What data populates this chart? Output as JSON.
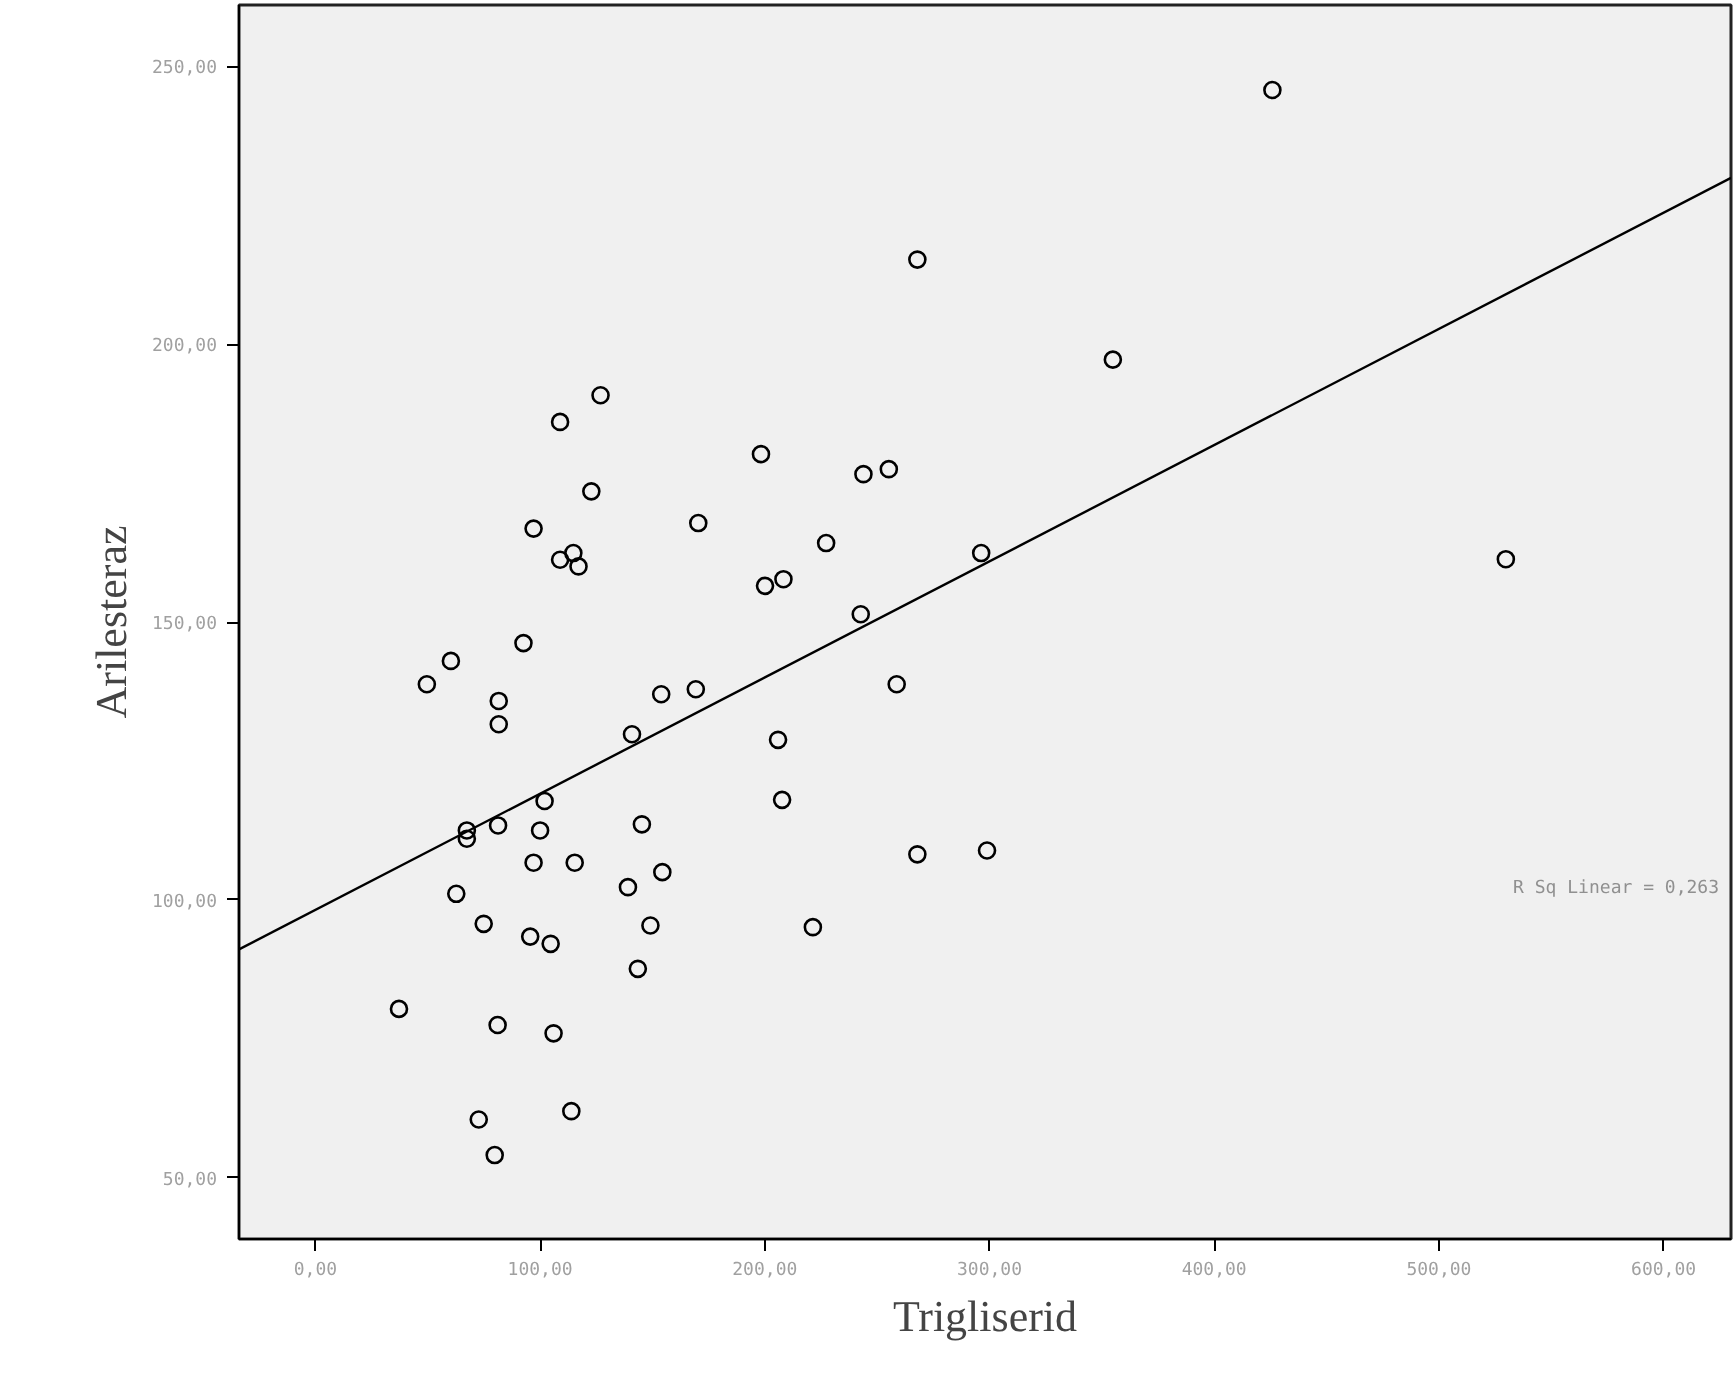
{
  "chart_data": {
    "type": "scatter",
    "xlabel": "Trigliserid",
    "ylabel": "Arilesteraz",
    "grid": false,
    "xlim": [
      -34,
      630
    ],
    "ylim": [
      39,
      261
    ],
    "xticks": [
      {
        "value": 0,
        "label": "0,00"
      },
      {
        "value": 100,
        "label": "100,00"
      },
      {
        "value": 200,
        "label": "200,00"
      },
      {
        "value": 300,
        "label": "300,00"
      },
      {
        "value": 400,
        "label": "400,00"
      },
      {
        "value": 500,
        "label": "500,00"
      },
      {
        "value": 600,
        "label": "600,00"
      }
    ],
    "yticks": [
      {
        "value": 50,
        "label": "50,00"
      },
      {
        "value": 100,
        "label": "100,00"
      },
      {
        "value": 150,
        "label": "150,00"
      },
      {
        "value": 200,
        "label": "200,00"
      },
      {
        "value": 250,
        "label": "250,00"
      }
    ],
    "annotations": [
      "R Sq Linear = 0,263"
    ],
    "series": [
      {
        "marker": "circle",
        "color": "#000000",
        "x": [
          126.9,
          108.9,
          198.3,
          243.9,
          255.2,
          122.8,
          170.4,
          97.1,
          227.3,
          108.9,
          114.8,
          117.1,
          200.1,
          208.3,
          242.7,
          92.6,
          60.3,
          49.6,
          81.6,
          81.6,
          153.9,
          169.3,
          140.9,
          205.9,
          207.7,
          258.7,
          102.0,
          81.3,
          67.4,
          67.4,
          100.0,
          145.3,
          97.1,
          115.4,
          154.4,
          139.1,
          62.7,
          74.9,
          95.6,
          104.7,
          149.1,
          221.4,
          143.5,
          37.2,
          81.1,
          106.0,
          72.7,
          113.9,
          79.8,
          425.9,
          267.9,
          354.9,
          296.3,
          529.8,
          267.9,
          298.9
        ],
        "values": [
          190.8,
          186.0,
          180.2,
          176.6,
          177.5,
          173.5,
          167.8,
          166.8,
          164.2,
          161.2,
          162.4,
          160.0,
          156.5,
          157.7,
          151.4,
          146.2,
          143.0,
          138.8,
          135.8,
          131.6,
          137.0,
          137.9,
          129.8,
          128.8,
          118.0,
          138.8,
          117.8,
          113.4,
          112.5,
          111.0,
          112.5,
          113.6,
          106.7,
          106.7,
          105.0,
          102.3,
          101.1,
          95.7,
          93.4,
          92.1,
          95.4,
          95.1,
          87.6,
          80.4,
          77.5,
          76.0,
          60.5,
          62.0,
          54.1,
          245.7,
          215.2,
          197.2,
          162.4,
          161.3,
          108.2,
          108.9
        ]
      },
      {
        "type": "line",
        "color": "#000000",
        "x": [
          -34,
          630
        ],
        "values": [
          91.1,
          229.9
        ]
      }
    ]
  }
}
